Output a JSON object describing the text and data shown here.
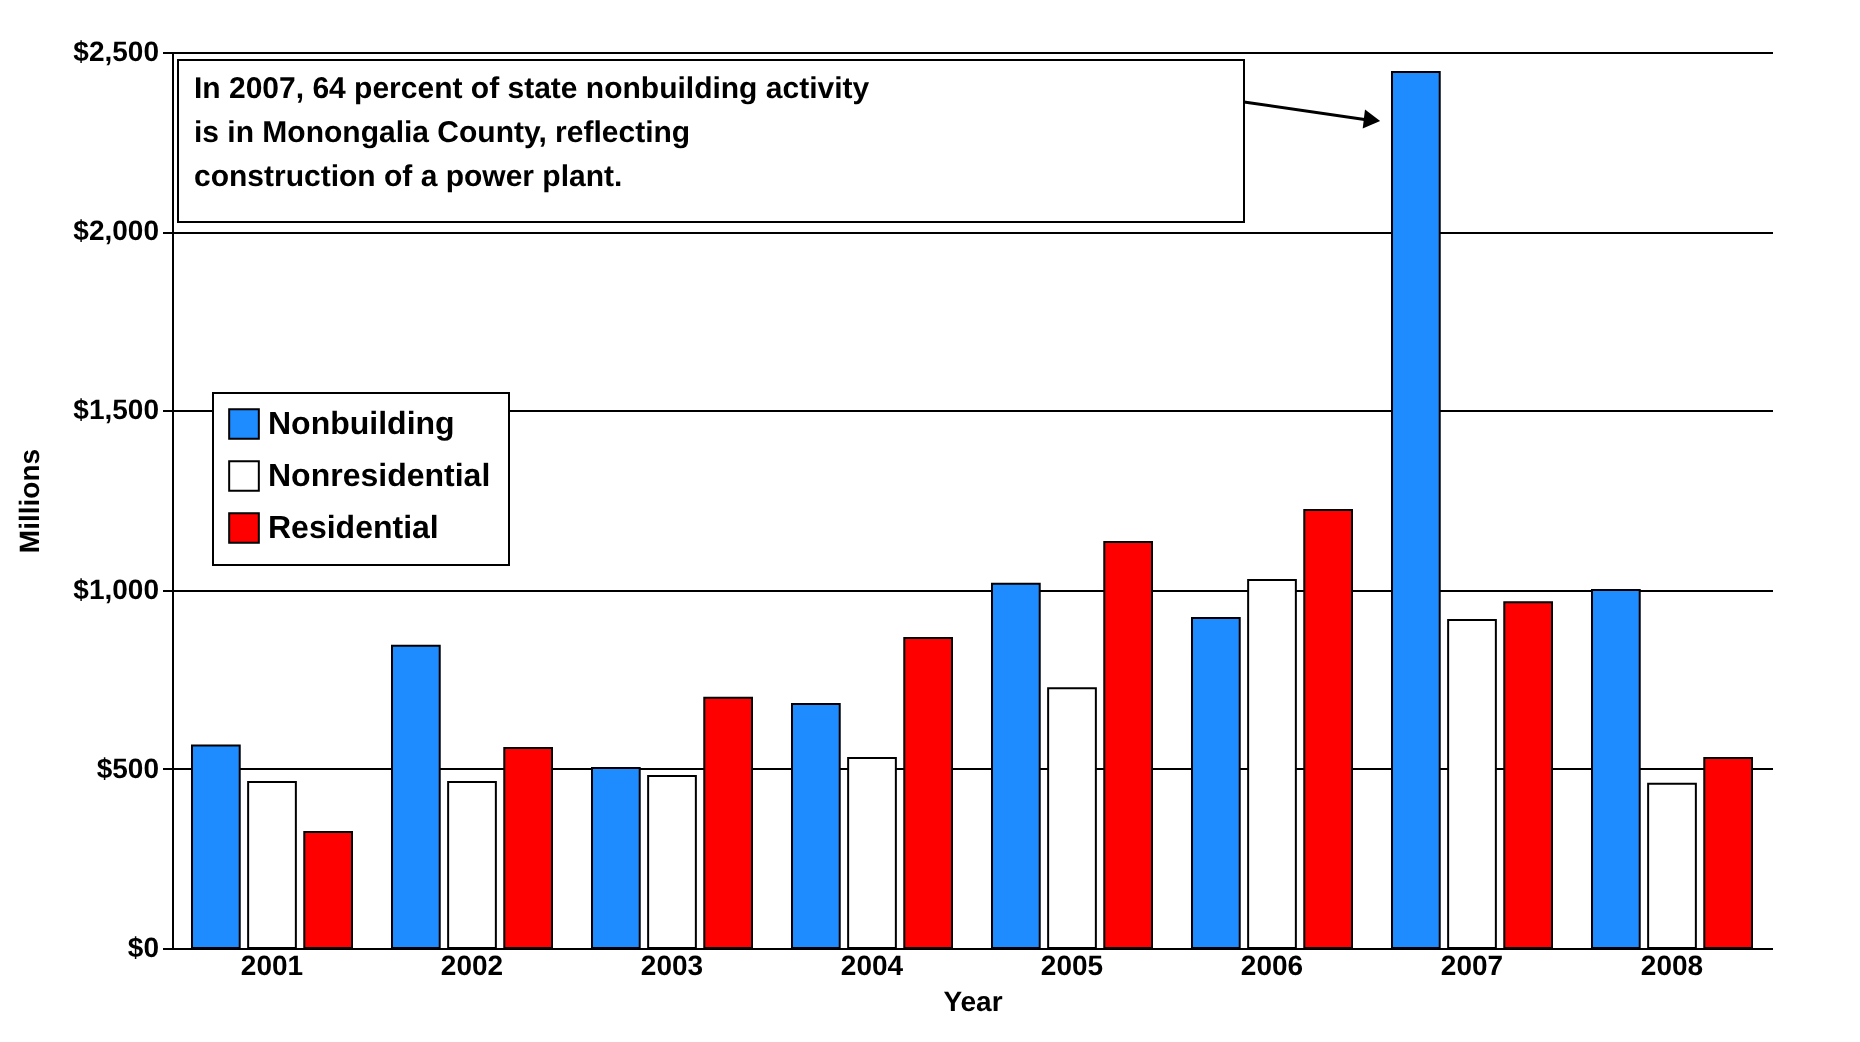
{
  "chart_data": {
    "type": "bar",
    "xlabel": "Year",
    "ylabel": "Millions",
    "categories": [
      "2001",
      "2002",
      "2003",
      "2004",
      "2005",
      "2006",
      "2007",
      "2008"
    ],
    "series": [
      {
        "name": "Nonbuilding",
        "color": "#1e8cff",
        "values": [
          565,
          843,
          502,
          681,
          1016,
          921,
          2444,
          999
        ]
      },
      {
        "name": "Nonresidential",
        "color": "#ffffff",
        "values": [
          463,
          463,
          480,
          530,
          725,
          1027,
          915,
          458
        ]
      },
      {
        "name": "Residential",
        "color": "#ff0000",
        "values": [
          324,
          558,
          698,
          865,
          1133,
          1222,
          965,
          530
        ]
      }
    ],
    "ylim": [
      0,
      2500
    ],
    "yticks": [
      {
        "value": 0,
        "label": "$0"
      },
      {
        "value": 500,
        "label": "$500"
      },
      {
        "value": 1000,
        "label": "$1,000"
      },
      {
        "value": 1500,
        "label": "$1,500"
      },
      {
        "value": 2000,
        "label": "$2,000"
      },
      {
        "value": 2500,
        "label": "$2,500"
      }
    ],
    "grid": "y",
    "legend": "left",
    "annotations": [
      "In 2007, 64 percent of state nonbuilding activity\nis in Monongalia County, reflecting\nconstruction of a power plant."
    ]
  }
}
